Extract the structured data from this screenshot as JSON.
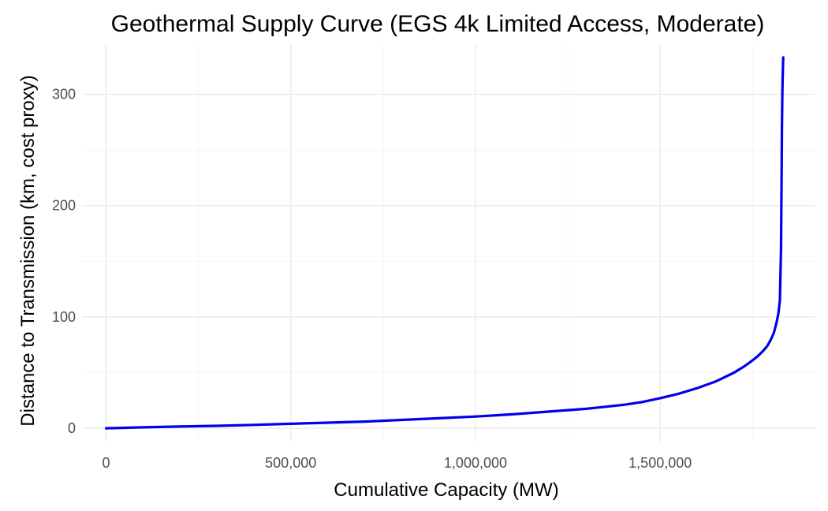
{
  "chart_data": {
    "type": "line",
    "title": "Geothermal Supply Curve (EGS 4k Limited Access, Moderate)",
    "xlabel": "Cumulative Capacity (MW)",
    "ylabel": "Distance to Transmission (km, cost proxy)",
    "xlim": [
      -65000,
      1920000
    ],
    "ylim": [
      -12,
      345
    ],
    "x_ticks": [
      {
        "value": 0,
        "label": "0"
      },
      {
        "value": 500000,
        "label": "500,000"
      },
      {
        "value": 1000000,
        "label": "1,000,000"
      },
      {
        "value": 1500000,
        "label": "1,500,000"
      }
    ],
    "x_minor_ticks": [
      250000,
      750000,
      1250000,
      1750000
    ],
    "y_ticks": [
      {
        "value": 0,
        "label": "0"
      },
      {
        "value": 100,
        "label": "100"
      },
      {
        "value": 200,
        "label": "200"
      },
      {
        "value": 300,
        "label": "300"
      }
    ],
    "y_minor_ticks": [
      50,
      150,
      250
    ],
    "grid": true,
    "series": [
      {
        "color": "#0000ee",
        "x": [
          0,
          100000,
          200000,
          300000,
          400000,
          500000,
          600000,
          700000,
          800000,
          900000,
          1000000,
          1100000,
          1200000,
          1300000,
          1400000,
          1450000,
          1500000,
          1550000,
          1600000,
          1650000,
          1700000,
          1725000,
          1750000,
          1765000,
          1780000,
          1790000,
          1800000,
          1808000,
          1815000,
          1820000,
          1824000,
          1827000,
          1828500,
          1829500,
          1830500,
          1831500,
          1833000
        ],
        "y": [
          0,
          0.8,
          1.5,
          2.2,
          3.0,
          4.0,
          5.0,
          6.0,
          7.5,
          9.0,
          10.5,
          12.5,
          15.0,
          17.5,
          21.0,
          23.5,
          27.0,
          31.0,
          36.0,
          42.0,
          50.0,
          55.0,
          61.0,
          65.0,
          70.0,
          74.0,
          80.0,
          86.0,
          95.0,
          103.0,
          115.0,
          160.0,
          220.0,
          270.0,
          300.0,
          315.0,
          333.0
        ]
      }
    ]
  }
}
